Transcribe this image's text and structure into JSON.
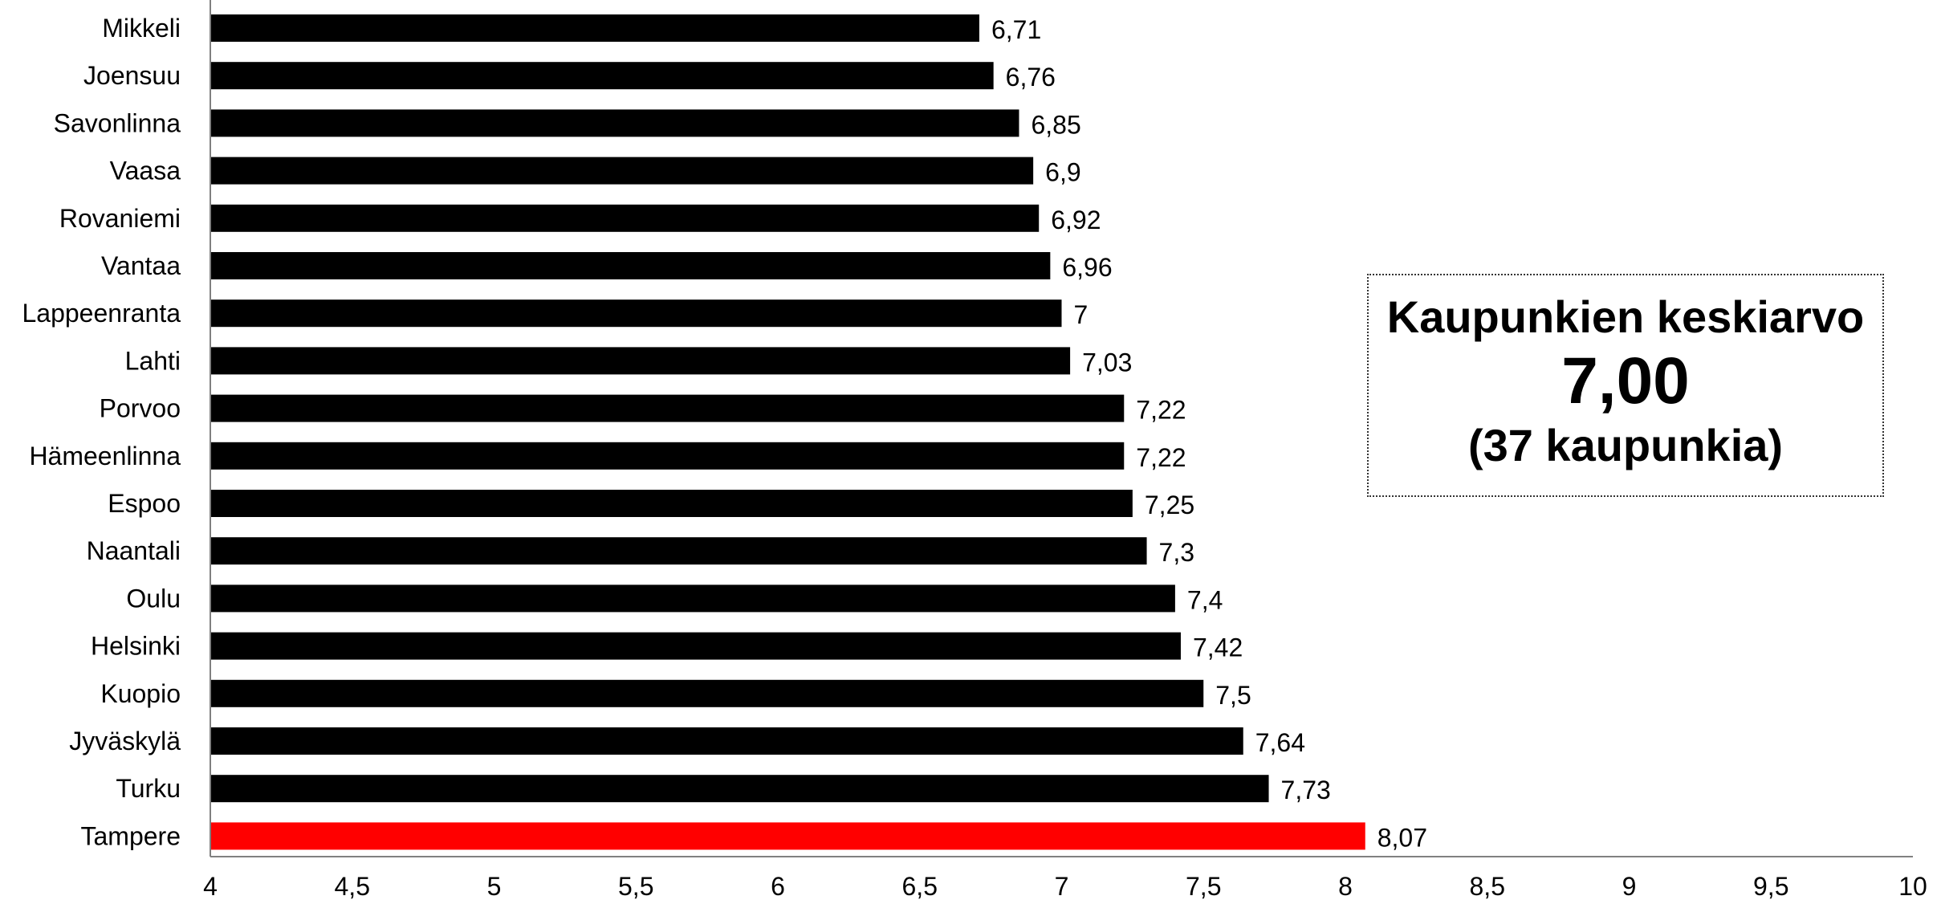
{
  "chart_data": {
    "type": "bar",
    "orientation": "horizontal",
    "categories": [
      "Mikkeli",
      "Joensuu",
      "Savonlinna",
      "Vaasa",
      "Rovaniemi",
      "Vantaa",
      "Lappeenranta",
      "Lahti",
      "Porvoo",
      "Hämeenlinna",
      "Espoo",
      "Naantali",
      "Oulu",
      "Helsinki",
      "Kuopio",
      "Jyväskylä",
      "Turku",
      "Tampere"
    ],
    "values": [
      6.71,
      6.76,
      6.85,
      6.9,
      6.92,
      6.96,
      7,
      7.03,
      7.22,
      7.22,
      7.25,
      7.3,
      7.4,
      7.42,
      7.5,
      7.64,
      7.73,
      8.07
    ],
    "data_labels": [
      "6,71",
      "6,76",
      "6,85",
      "6,9",
      "6,92",
      "6,96",
      "7",
      "7,03",
      "7,22",
      "7,22",
      "7,25",
      "7,3",
      "7,4",
      "7,42",
      "7,5",
      "7,64",
      "7,73",
      "8,07"
    ],
    "highlight_category": "Tampere",
    "xlim": [
      4,
      10
    ],
    "x_ticks": [
      4,
      4.5,
      5,
      5.5,
      6,
      6.5,
      7,
      7.5,
      8,
      8.5,
      9,
      9.5,
      10
    ],
    "x_tick_labels": [
      "4",
      "4,5",
      "5",
      "5,5",
      "6",
      "6,5",
      "7",
      "7,5",
      "8",
      "8,5",
      "9",
      "9,5",
      "10"
    ],
    "grid": false,
    "colors": {
      "bar": "#000000",
      "highlight": "#ff0000",
      "axis": "#808080"
    }
  },
  "callout": {
    "title": "Kaupunkien keskiarvo",
    "value": "7,00",
    "count": "(37 kaupunkia)"
  }
}
